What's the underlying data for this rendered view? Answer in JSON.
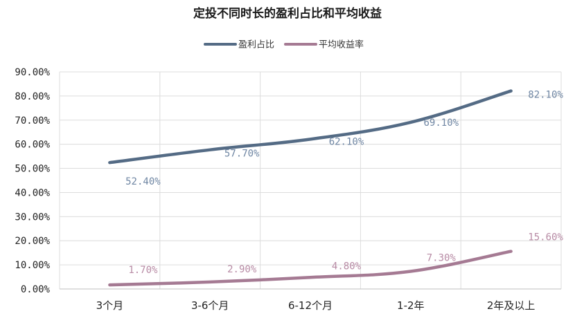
{
  "chart_data": {
    "type": "line",
    "title": "定投不同时长的盈利占比和平均收益",
    "categories": [
      "3个月",
      "3-6个月",
      "6-12个月",
      "1-2年",
      "2年及以上"
    ],
    "ylim": [
      0,
      90
    ],
    "yticks": [
      "0.00%",
      "10.00%",
      "20.00%",
      "30.00%",
      "40.00%",
      "50.00%",
      "60.00%",
      "70.00%",
      "80.00%",
      "90.00%"
    ],
    "grid": true,
    "legend_position": "top-center",
    "series": [
      {
        "name": "盈利占比",
        "values": [
          52.4,
          57.7,
          62.1,
          69.1,
          82.1
        ],
        "labels": [
          "52.40%",
          "57.70%",
          "62.10%",
          "69.10%",
          "82.10%"
        ],
        "color": "#546b85",
        "label_color": "#6f86a3"
      },
      {
        "name": "平均收益率",
        "values": [
          1.7,
          2.9,
          4.8,
          7.3,
          15.6
        ],
        "labels": [
          "1.70%",
          "2.90%",
          "4.80%",
          "7.30%",
          "15.60%"
        ],
        "color": "#a57a93",
        "label_color": "#b78aa4"
      }
    ]
  }
}
